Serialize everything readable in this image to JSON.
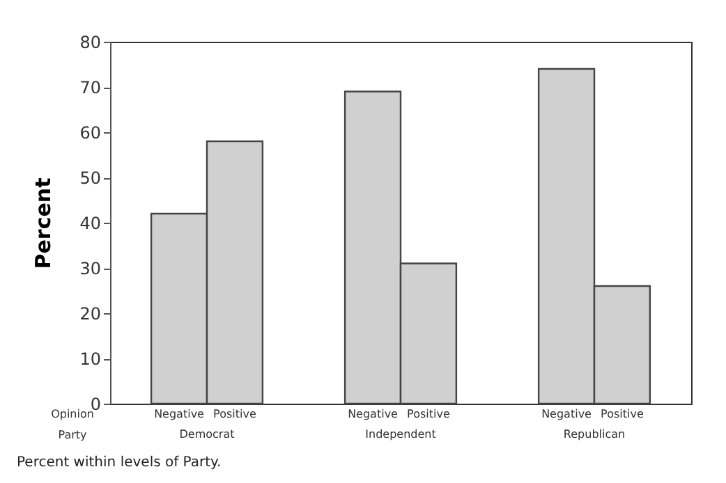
{
  "chart_data": {
    "type": "bar",
    "ylabel": "Percent",
    "categories": [
      "Democrat",
      "Independent",
      "Republican"
    ],
    "series": [
      {
        "name": "Negative",
        "color": "#d0d0d0",
        "values": [
          42,
          69,
          74
        ]
      },
      {
        "name": "Positive",
        "color": "#d0d0d0",
        "values": [
          58,
          31,
          26
        ]
      }
    ],
    "ylim": [
      0,
      80
    ],
    "yticks": [
      0,
      10,
      20,
      30,
      40,
      50,
      60,
      70,
      80
    ],
    "annotations": [
      "Opinion",
      "Party",
      "Percent within levels of Party."
    ]
  }
}
